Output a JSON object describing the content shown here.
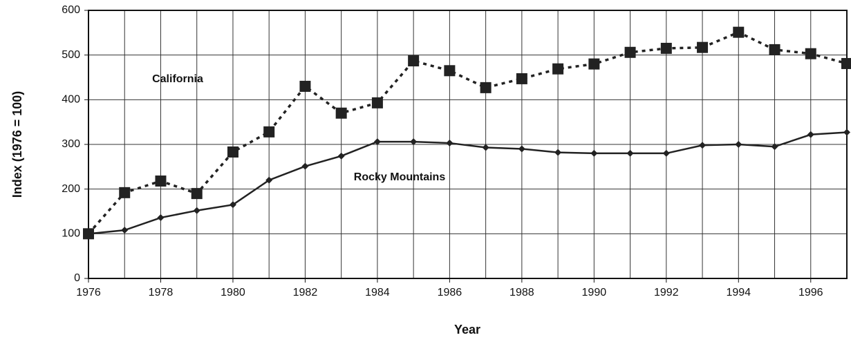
{
  "chart_data": {
    "type": "line",
    "x": [
      1976,
      1977,
      1978,
      1979,
      1980,
      1981,
      1982,
      1983,
      1984,
      1985,
      1986,
      1987,
      1988,
      1989,
      1990,
      1991,
      1992,
      1993,
      1994,
      1995,
      1996,
      1997
    ],
    "series": [
      {
        "name": "California",
        "color": "#222222",
        "linestyle": "dotted",
        "marker": "square",
        "values": [
          100,
          192,
          218,
          190,
          283,
          328,
          430,
          370,
          393,
          487,
          465,
          427,
          447,
          469,
          480,
          506,
          515,
          517,
          551,
          512,
          503,
          481
        ]
      },
      {
        "name": "Rocky Mountains",
        "color": "#222222",
        "linestyle": "solid",
        "marker": "diamond",
        "values": [
          100,
          108,
          136,
          152,
          165,
          220,
          251,
          274,
          306,
          306,
          303,
          293,
          290,
          282,
          280,
          280,
          280,
          298,
          300,
          295,
          322,
          327
        ]
      }
    ],
    "xlabel": "Year",
    "ylabel": "Index (1976 = 100)",
    "xlim": [
      1976,
      1997
    ],
    "xticks": [
      1976,
      1978,
      1980,
      1982,
      1984,
      1986,
      1988,
      1990,
      1992,
      1994,
      1996
    ],
    "ylim": [
      0,
      600
    ],
    "yticks": [
      0,
      100,
      200,
      300,
      400,
      500,
      600
    ],
    "grid": true
  }
}
